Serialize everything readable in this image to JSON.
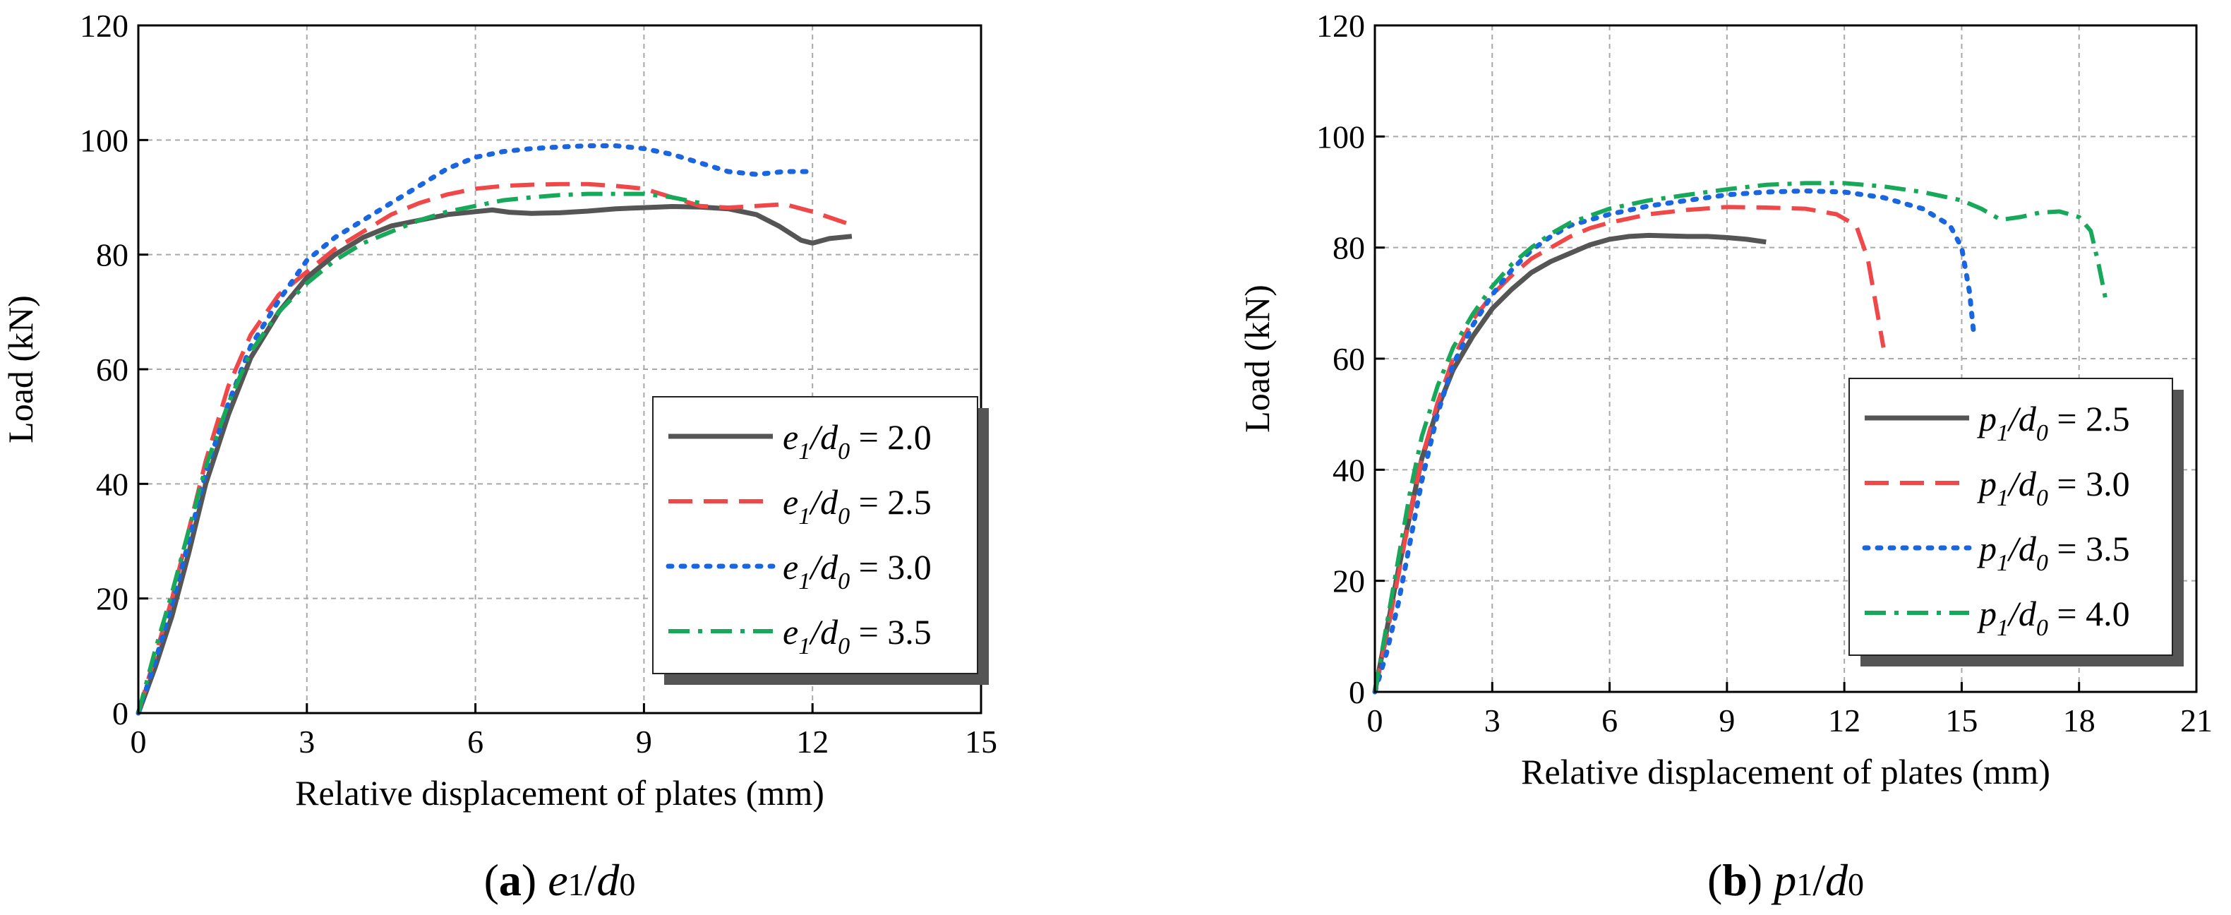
{
  "chart_data": [
    {
      "type": "line",
      "panel_id": "a",
      "caption": {
        "label": "(a)",
        "param": "e",
        "param_sub": "1",
        "sep": "/",
        "denom": "d",
        "denom_sub": "0"
      },
      "xlabel": "Relative displacement of plates (mm)",
      "ylabel": "Load (kN)",
      "xlim": [
        0,
        15
      ],
      "ylim": [
        0,
        120
      ],
      "xticks": [
        0,
        3,
        6,
        9,
        12,
        15
      ],
      "yticks": [
        0,
        20,
        40,
        60,
        80,
        100,
        120
      ],
      "grid": true,
      "legend_position": "center-right",
      "series": [
        {
          "name": "e1/d0 = 2.0",
          "legend_var": "e",
          "legend_value": "2.0",
          "color": "#555555",
          "style": "solid",
          "x": [
            0,
            0.3,
            0.6,
            0.9,
            1.2,
            1.6,
            2.0,
            2.5,
            3.0,
            3.5,
            4.0,
            4.5,
            5.0,
            5.5,
            6.0,
            6.3,
            6.6,
            7.0,
            7.5,
            8.0,
            8.5,
            9.0,
            9.5,
            10.0,
            10.5,
            11.0,
            11.4,
            11.8,
            12.0,
            12.3,
            12.7
          ],
          "y": [
            0,
            8,
            17,
            28,
            40,
            52,
            62,
            70,
            76,
            80,
            83,
            85,
            86,
            87,
            87.5,
            87.8,
            87.4,
            87.2,
            87.3,
            87.6,
            88,
            88.2,
            88.4,
            88.3,
            88,
            87,
            85,
            82.5,
            82,
            82.8,
            83.2
          ]
        },
        {
          "name": "e1/d0 = 2.5",
          "legend_var": "e",
          "legend_value": "2.5",
          "color": "#f04848",
          "style": "dash",
          "x": [
            0,
            0.3,
            0.6,
            0.9,
            1.2,
            1.6,
            2.0,
            2.5,
            3.0,
            3.5,
            4.0,
            4.5,
            5.0,
            5.5,
            6.0,
            6.5,
            7.0,
            7.5,
            8.0,
            8.5,
            9.0,
            9.5,
            10.0,
            10.5,
            11.0,
            11.5,
            12.0,
            12.3,
            12.6
          ],
          "y": [
            0,
            10,
            20,
            32,
            44,
            57,
            66,
            73,
            77,
            81,
            84,
            87,
            89,
            90.5,
            91.5,
            92,
            92.2,
            92.3,
            92.3,
            92,
            91.5,
            90,
            88.5,
            88.2,
            88.5,
            88.8,
            87.5,
            86.5,
            85.5
          ]
        },
        {
          "name": "e1/d0 = 3.0",
          "legend_var": "e",
          "legend_value": "3.0",
          "color": "#1a66e0",
          "style": "dot",
          "x": [
            0,
            0.3,
            0.6,
            0.9,
            1.2,
            1.6,
            2.0,
            2.5,
            3.0,
            3.5,
            4.0,
            4.5,
            5.0,
            5.5,
            6.0,
            6.5,
            7.0,
            7.5,
            8.0,
            8.5,
            9.0,
            9.5,
            10.0,
            10.5,
            11.0,
            11.5,
            12.0
          ],
          "y": [
            0,
            9,
            19,
            30,
            42,
            54,
            64,
            72,
            79,
            83,
            86,
            89,
            92,
            95,
            97,
            98,
            98.5,
            98.8,
            99,
            99,
            98.5,
            97.5,
            96,
            94.5,
            94,
            94.5,
            94.5
          ]
        },
        {
          "name": "e1/d0 = 3.5",
          "legend_var": "e",
          "legend_value": "3.5",
          "color": "#18a85a",
          "style": "dashdot",
          "x": [
            0,
            0.3,
            0.6,
            0.9,
            1.2,
            1.6,
            2.0,
            2.5,
            3.0,
            3.5,
            4.0,
            4.5,
            5.0,
            5.5,
            6.0,
            6.5,
            7.0,
            7.5,
            8.0,
            8.5,
            9.0,
            9.5,
            10.0
          ],
          "y": [
            0,
            11,
            21,
            32,
            43,
            54,
            63,
            70,
            75,
            79,
            82,
            84,
            86,
            87.5,
            88.5,
            89.5,
            90,
            90.4,
            90.6,
            90.6,
            90.6,
            90,
            89
          ]
        }
      ]
    },
    {
      "type": "line",
      "panel_id": "b",
      "caption": {
        "label": "(b)",
        "param": "p",
        "param_sub": "1",
        "sep": "/",
        "denom": "d",
        "denom_sub": "0"
      },
      "xlabel": "Relative displacement of plates (mm)",
      "ylabel": "Load (kN)",
      "xlim": [
        0,
        21
      ],
      "ylim": [
        0,
        120
      ],
      "xticks": [
        0,
        3,
        6,
        9,
        12,
        15,
        18,
        21
      ],
      "yticks": [
        0,
        20,
        40,
        60,
        80,
        100,
        120
      ],
      "grid": true,
      "legend_position": "center-right",
      "series": [
        {
          "name": "p1/d0 = 2.5",
          "legend_var": "p",
          "legend_value": "2.5",
          "color": "#555555",
          "style": "solid",
          "x": [
            0,
            0.3,
            0.6,
            0.9,
            1.2,
            1.6,
            2.0,
            2.5,
            3.0,
            3.5,
            4.0,
            4.5,
            5.0,
            5.5,
            6.0,
            6.5,
            7.0,
            7.5,
            8.0,
            8.5,
            9.0,
            9.5,
            10.0
          ],
          "y": [
            0,
            11,
            22,
            32,
            42,
            51,
            58,
            64,
            69,
            72.5,
            75.5,
            77.5,
            79,
            80.5,
            81.5,
            82,
            82.2,
            82.1,
            82,
            82,
            81.8,
            81.5,
            81
          ]
        },
        {
          "name": "p1/d0 = 3.0",
          "legend_var": "p",
          "legend_value": "3.0",
          "color": "#f04848",
          "style": "dash",
          "x": [
            0,
            0.3,
            0.6,
            0.9,
            1.2,
            1.6,
            2.0,
            2.5,
            3.0,
            3.5,
            4.0,
            4.5,
            5.0,
            5.5,
            6.0,
            7.0,
            8.0,
            9.0,
            10.0,
            11.0,
            11.8,
            12.3,
            12.6,
            12.8,
            13.0
          ],
          "y": [
            0,
            10,
            21,
            32,
            42,
            52,
            60,
            67,
            71.5,
            75,
            78,
            80,
            82,
            83.5,
            84.5,
            86,
            86.8,
            87.3,
            87.2,
            87,
            86,
            84,
            78,
            70,
            62
          ]
        },
        {
          "name": "p1/d0 = 3.5",
          "legend_var": "p",
          "legend_value": "3.5",
          "color": "#1a66e0",
          "style": "dot",
          "x": [
            0,
            0.3,
            0.6,
            0.9,
            1.2,
            1.6,
            2.0,
            2.5,
            3.0,
            3.5,
            4.0,
            4.5,
            5.0,
            5.5,
            6.0,
            7.0,
            8.0,
            9.0,
            10.0,
            11.0,
            12.0,
            13.0,
            14.0,
            14.7,
            15.0,
            15.2,
            15.3
          ],
          "y": [
            0,
            7,
            16,
            27,
            38,
            50,
            59,
            66,
            71.5,
            76,
            79.5,
            82,
            84,
            85,
            86,
            87.5,
            88.5,
            89.5,
            90,
            90.2,
            90,
            89,
            87,
            84,
            80,
            72,
            65
          ]
        },
        {
          "name": "p1/d0 = 4.0",
          "legend_var": "p",
          "legend_value": "4.0",
          "color": "#18a85a",
          "style": "dashdot",
          "x": [
            0,
            0.3,
            0.6,
            0.9,
            1.2,
            1.6,
            2.0,
            2.5,
            3.0,
            3.5,
            4.0,
            4.5,
            5.0,
            6.0,
            7.0,
            8.0,
            9.0,
            10.0,
            11.0,
            12.0,
            13.0,
            14.0,
            15.0,
            15.5,
            16.0,
            16.5,
            17.0,
            17.5,
            18.0,
            18.3,
            18.5,
            18.7
          ],
          "y": [
            0,
            12,
            24,
            36,
            46,
            55,
            62,
            68,
            73,
            77,
            80,
            82.5,
            84.5,
            87,
            88.5,
            89.5,
            90.5,
            91.3,
            91.6,
            91.6,
            91,
            90,
            88.5,
            87,
            85,
            85.5,
            86.3,
            86.5,
            85.5,
            83,
            77,
            70
          ]
        }
      ]
    }
  ]
}
